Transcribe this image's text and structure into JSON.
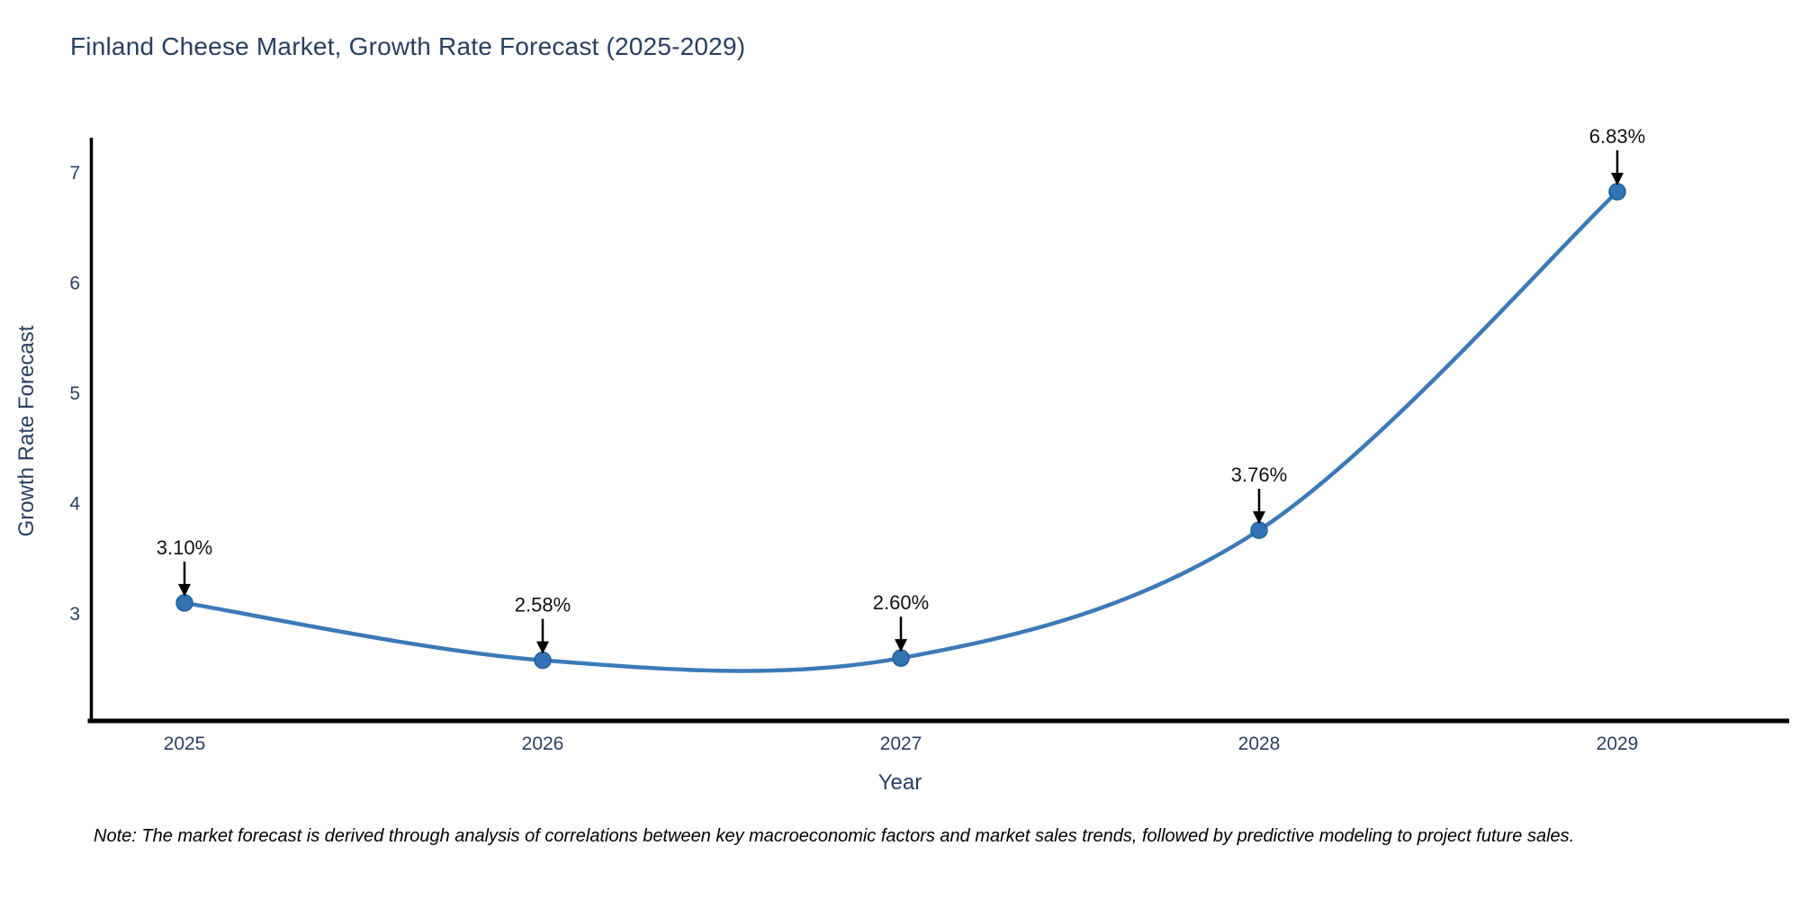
{
  "title": "Finland Cheese Market, Growth Rate Forecast (2025-2029)",
  "note": "Note: The market forecast is derived through analysis of correlations between key macroeconomic factors and market sales trends, followed by predictive modeling to project future sales.",
  "chart_data": {
    "type": "line",
    "title": "Finland Cheese Market, Growth Rate Forecast (2025-2029)",
    "xlabel": "Year",
    "ylabel": "Growth Rate Forecast",
    "categories": [
      "2025",
      "2026",
      "2027",
      "2028",
      "2029"
    ],
    "values": [
      3.1,
      2.58,
      2.6,
      3.76,
      6.83
    ],
    "point_labels": [
      "3.10%",
      "2.58%",
      "2.60%",
      "3.76%",
      "6.83%"
    ],
    "yticks": [
      3,
      4,
      5,
      6,
      7
    ],
    "ylim": [
      2.03,
      7.32
    ],
    "line_shape": "spline",
    "grid": false,
    "legend": "none",
    "colors": {
      "line": "#3c79b8",
      "marker_fill": "#3273b5",
      "marker_edge": "#1f5e99",
      "annotation_text": "#111111",
      "arrow": "#000000",
      "axis_line": "#000000",
      "tick_text": "#2a3f5f"
    }
  }
}
